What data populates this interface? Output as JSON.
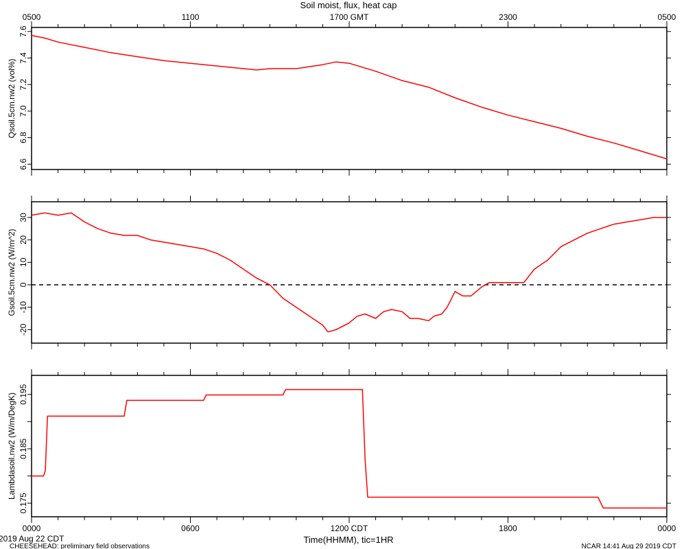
{
  "title": "Soil moist, flux, heat cap",
  "top_axis_ticks": [
    "0500",
    "1100",
    "1700 GMT",
    "2300",
    "0500"
  ],
  "bottom_axis_ticks": [
    "0000",
    "0600",
    "1200 CDT",
    "1800",
    "0000"
  ],
  "xlabel": "Time(HHMM), tic=1HR",
  "footer": {
    "date": "2019 Aug 22 CDT",
    "project": "CHEESEHEAD: preliminary field observations",
    "stamp": "NCAR 14:41 Aug 29 2019 CDT"
  },
  "colors": {
    "series": "#ff0000",
    "axis": "#000000"
  },
  "chart_data": [
    {
      "type": "line",
      "ylabel": "Qsoil.5cm.nw2 (vol%)",
      "x_units": "hours since 0000 CDT",
      "xlim": [
        0,
        24
      ],
      "ylim": [
        6.56,
        7.63
      ],
      "yticks": [
        6.6,
        6.8,
        7.0,
        7.2,
        7.4,
        7.6
      ],
      "ytick_labels": [
        "6.6",
        "6.8",
        "7.0",
        "7.2",
        "7.4",
        "7.6"
      ],
      "grid": false,
      "x": [
        0,
        0.5,
        1,
        2,
        3,
        4,
        5,
        6,
        7,
        8,
        8.5,
        9,
        10,
        11,
        11.5,
        12,
        13,
        14,
        15,
        16,
        17,
        18,
        19,
        20,
        21,
        22,
        23,
        24
      ],
      "values": [
        7.57,
        7.55,
        7.52,
        7.48,
        7.44,
        7.41,
        7.38,
        7.36,
        7.34,
        7.32,
        7.31,
        7.32,
        7.32,
        7.35,
        7.37,
        7.36,
        7.3,
        7.23,
        7.18,
        7.1,
        7.03,
        6.97,
        6.92,
        6.87,
        6.81,
        6.76,
        6.7,
        6.64
      ]
    },
    {
      "type": "line",
      "ylabel": "Gsoil.5cm.nw2 (W/m^2)",
      "x_units": "hours since 0000 CDT",
      "xlim": [
        0,
        24
      ],
      "ylim": [
        -26,
        37
      ],
      "yticks": [
        -20,
        -10,
        0,
        10,
        20,
        30
      ],
      "ytick_labels": [
        "-20",
        "-10",
        "0",
        "10",
        "20",
        "30"
      ],
      "reference_line": 0,
      "grid": false,
      "x": [
        0,
        0.5,
        1,
        1.5,
        2,
        2.5,
        3,
        3.5,
        4,
        4.5,
        5,
        5.5,
        6,
        6.5,
        7,
        7.5,
        8,
        8.5,
        9,
        9.5,
        10,
        10.5,
        11,
        11.2,
        11.5,
        12,
        12.3,
        12.6,
        13,
        13.3,
        13.6,
        14,
        14.3,
        14.6,
        15,
        15.2,
        15.5,
        15.7,
        16,
        16.3,
        16.6,
        17,
        17.3,
        17.6,
        18,
        18.3,
        18.6,
        19,
        19.5,
        20,
        20.5,
        21,
        21.5,
        22,
        22.5,
        23,
        23.5,
        24
      ],
      "values": [
        31,
        32,
        31,
        32,
        28,
        25,
        23,
        22,
        22,
        20,
        19,
        18,
        17,
        16,
        14,
        11,
        7,
        3,
        0,
        -6,
        -10,
        -14,
        -18,
        -21,
        -20,
        -17,
        -14,
        -13,
        -15,
        -12,
        -11,
        -12,
        -15,
        -15,
        -16,
        -14,
        -13,
        -10,
        -3,
        -5,
        -5,
        -1,
        1,
        1,
        1,
        1,
        1,
        7,
        11,
        17,
        20,
        23,
        25,
        27,
        28,
        29,
        30,
        30
      ]
    },
    {
      "type": "line",
      "ylabel": "Lambdasoil.nw2 (W/m/DegK)",
      "x_units": "hours since 0000 CDT",
      "xlim": [
        0,
        24
      ],
      "ylim": [
        0.1725,
        0.1985
      ],
      "yticks": [
        0.175,
        0.18,
        0.185,
        0.19,
        0.195
      ],
      "ytick_labels": [
        "0.175",
        "",
        "0.185",
        "",
        "0.195"
      ],
      "grid": false,
      "x": [
        0,
        0.45,
        0.52,
        0.6,
        3.5,
        3.6,
        6.5,
        6.6,
        9.5,
        9.6,
        12.5,
        12.6,
        12.7,
        21.4,
        21.6,
        24
      ],
      "values": [
        0.18,
        0.18,
        0.181,
        0.191,
        0.191,
        0.1939,
        0.1939,
        0.1949,
        0.1949,
        0.1959,
        0.1959,
        0.183,
        0.1761,
        0.1761,
        0.1741,
        0.1741
      ]
    }
  ]
}
